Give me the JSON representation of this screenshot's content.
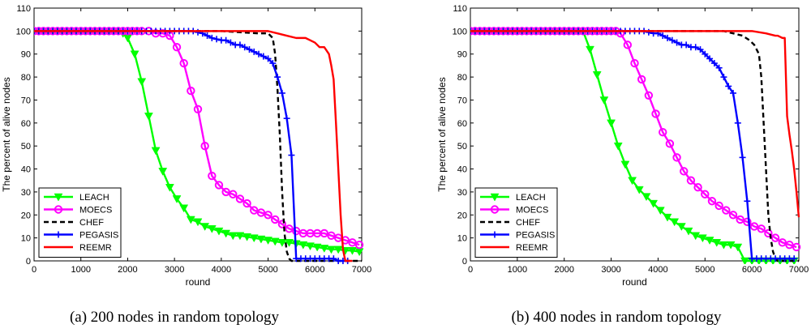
{
  "chart_data": [
    {
      "type": "line",
      "caption": "(a)  200 nodes in random topology",
      "xlabel": "round",
      "ylabel": "The percent of  alive nodes",
      "xlim": [
        0,
        7000
      ],
      "ylim": [
        0,
        110
      ],
      "xticks": [
        0,
        1000,
        2000,
        3000,
        4000,
        5000,
        6000,
        7000
      ],
      "yticks": [
        0,
        10,
        20,
        30,
        40,
        50,
        60,
        70,
        80,
        90,
        100,
        110
      ],
      "legend_position": "lower-left",
      "series": [
        {
          "name": "LEACH",
          "color": "#00ff00",
          "style": "solid",
          "marker": "triangle-down",
          "x": [
            0,
            100,
            200,
            300,
            400,
            500,
            600,
            700,
            800,
            900,
            1000,
            1100,
            1200,
            1300,
            1400,
            1500,
            1600,
            1700,
            1800,
            1900,
            2000,
            2150,
            2300,
            2450,
            2600,
            2750,
            2900,
            3050,
            3200,
            3350,
            3500,
            3650,
            3800,
            3950,
            4100,
            4250,
            4400,
            4550,
            4700,
            4850,
            5000,
            5150,
            5300,
            5450,
            5600,
            5750,
            5900,
            6050,
            6200,
            6350,
            6500,
            6650,
            6800,
            6950
          ],
          "y": [
            100,
            100,
            100,
            100,
            100,
            100,
            100,
            100,
            100,
            100,
            100,
            100,
            100,
            100,
            100,
            100,
            100,
            100,
            100,
            99,
            97,
            90,
            78,
            63,
            48,
            39,
            32,
            27,
            23,
            18,
            17,
            15,
            14,
            13,
            12,
            11,
            11,
            10.5,
            10,
            9.5,
            9,
            8.5,
            8,
            8,
            7.5,
            7,
            6.5,
            6,
            5.5,
            5,
            5,
            4.5,
            4.5,
            4
          ]
        },
        {
          "name": "MOECS",
          "color": "#ff00ff",
          "style": "solid",
          "marker": "circle",
          "x": [
            0,
            100,
            200,
            300,
            400,
            500,
            600,
            700,
            800,
            900,
            1000,
            1100,
            1200,
            1300,
            1400,
            1500,
            1600,
            1700,
            1800,
            1900,
            2000,
            2100,
            2200,
            2300,
            2450,
            2600,
            2750,
            2900,
            3050,
            3200,
            3350,
            3500,
            3650,
            3800,
            3950,
            4100,
            4250,
            4400,
            4550,
            4700,
            4850,
            5000,
            5150,
            5300,
            5450,
            5600,
            5750,
            5900,
            6050,
            6200,
            6350,
            6500,
            6650,
            6800,
            6950
          ],
          "y": [
            100,
            100,
            100,
            100,
            100,
            100,
            100,
            100,
            100,
            100,
            100,
            100,
            100,
            100,
            100,
            100,
            100,
            100,
            100,
            100,
            100,
            100,
            100,
            100,
            100,
            99,
            99,
            98,
            93,
            86,
            74,
            66,
            50,
            37,
            33,
            30,
            29,
            27,
            25,
            22,
            21,
            20,
            18,
            16,
            14,
            13,
            12,
            12,
            12,
            12,
            11,
            10,
            9,
            8,
            7
          ]
        },
        {
          "name": "CHEF",
          "color": "#000000",
          "style": "dashed",
          "marker": "none",
          "x": [
            0,
            1000,
            2000,
            3000,
            4000,
            4800,
            5000,
            5100,
            5150,
            5200,
            5250,
            5300,
            5350,
            5400,
            5450,
            5500,
            5600,
            6000,
            7000
          ],
          "y": [
            100,
            100,
            100,
            100,
            100,
            99,
            99,
            97,
            90,
            75,
            55,
            30,
            12,
            4,
            1,
            0,
            0,
            0,
            0
          ]
        },
        {
          "name": "PEGASIS",
          "color": "#0000ff",
          "style": "solid",
          "marker": "plus",
          "x": [
            0,
            100,
            200,
            300,
            400,
            500,
            600,
            700,
            800,
            900,
            1000,
            1100,
            1200,
            1300,
            1400,
            1500,
            1600,
            1700,
            1800,
            1900,
            2000,
            2100,
            2200,
            2300,
            2400,
            2500,
            2600,
            2700,
            2800,
            2900,
            3000,
            3100,
            3200,
            3300,
            3400,
            3500,
            3600,
            3700,
            3800,
            3900,
            4000,
            4100,
            4200,
            4300,
            4400,
            4500,
            4600,
            4700,
            4800,
            4900,
            5000,
            5100,
            5200,
            5300,
            5400,
            5500,
            5600,
            5700,
            5800,
            5900,
            6000,
            6100,
            6200,
            6300,
            6400,
            6500,
            6600,
            6700
          ],
          "y": [
            100,
            100,
            100,
            100,
            100,
            100,
            100,
            100,
            100,
            100,
            100,
            100,
            100,
            100,
            100,
            100,
            100,
            100,
            100,
            100,
            100,
            100,
            100,
            100,
            100,
            100,
            100,
            100,
            100,
            100,
            100,
            100,
            100,
            100,
            100,
            99.5,
            99,
            98,
            97,
            96.5,
            96,
            96,
            95,
            94,
            94,
            93,
            92,
            91,
            90,
            89,
            88,
            86,
            80,
            73,
            62,
            46,
            1,
            1,
            1,
            1,
            1,
            1,
            1,
            1,
            1,
            0,
            0,
            0
          ]
        },
        {
          "name": "REEMR",
          "color": "#ff0000",
          "style": "solid",
          "marker": "none",
          "x": [
            0,
            1000,
            2000,
            3000,
            4000,
            5000,
            5200,
            5400,
            5600,
            5800,
            5900,
            6000,
            6100,
            6200,
            6300,
            6350,
            6400,
            6450,
            6500,
            6550,
            6600,
            6650,
            6700,
            6750,
            6800
          ],
          "y": [
            100,
            100,
            100,
            100,
            100,
            100,
            99,
            98,
            97,
            97,
            96,
            95,
            93,
            93,
            90,
            85,
            79,
            60,
            40,
            20,
            5,
            0,
            0,
            0,
            0
          ]
        }
      ]
    },
    {
      "type": "line",
      "caption": "(b)  400 nodes in random topology",
      "xlabel": "round",
      "ylabel": "The percent of  alive nodes",
      "xlim": [
        0,
        7000
      ],
      "ylim": [
        0,
        110
      ],
      "xticks": [
        0,
        1000,
        2000,
        3000,
        4000,
        5000,
        6000,
        7000
      ],
      "yticks": [
        0,
        10,
        20,
        30,
        40,
        50,
        60,
        70,
        80,
        90,
        100,
        110
      ],
      "legend_position": "lower-left",
      "series": [
        {
          "name": "LEACH",
          "color": "#00ff00",
          "style": "solid",
          "marker": "triangle-down",
          "x": [
            0,
            100,
            200,
            300,
            400,
            500,
            600,
            700,
            800,
            900,
            1000,
            1100,
            1200,
            1300,
            1400,
            1500,
            1600,
            1700,
            1800,
            1900,
            2000,
            2100,
            2200,
            2300,
            2400,
            2550,
            2700,
            2850,
            3000,
            3150,
            3300,
            3450,
            3600,
            3750,
            3900,
            4050,
            4200,
            4350,
            4500,
            4650,
            4800,
            4950,
            5100,
            5250,
            5400,
            5550,
            5700,
            5850,
            6000,
            6150,
            6300,
            6450,
            6600,
            6750,
            6900
          ],
          "y": [
            100,
            100,
            100,
            100,
            100,
            100,
            100,
            100,
            100,
            100,
            100,
            100,
            100,
            100,
            100,
            100,
            100,
            100,
            100,
            100,
            100,
            100,
            100,
            100,
            100,
            92,
            81,
            70,
            60,
            50,
            42,
            35,
            31,
            28,
            25,
            22,
            19,
            17,
            15,
            13,
            11,
            10,
            9,
            8,
            7,
            7,
            6,
            0,
            0,
            0,
            0,
            0,
            0,
            0,
            0
          ]
        },
        {
          "name": "MOECS",
          "color": "#ff00ff",
          "style": "solid",
          "marker": "circle",
          "x": [
            0,
            100,
            200,
            300,
            400,
            500,
            600,
            700,
            800,
            900,
            1000,
            1100,
            1200,
            1300,
            1400,
            1500,
            1600,
            1700,
            1800,
            1900,
            2000,
            2100,
            2200,
            2300,
            2400,
            2500,
            2600,
            2700,
            2800,
            2900,
            3000,
            3100,
            3200,
            3350,
            3500,
            3650,
            3800,
            3950,
            4100,
            4250,
            4400,
            4550,
            4700,
            4850,
            5000,
            5150,
            5300,
            5450,
            5600,
            5750,
            5900,
            6050,
            6200,
            6350,
            6500,
            6650,
            6800,
            6950
          ],
          "y": [
            100,
            100,
            100,
            100,
            100,
            100,
            100,
            100,
            100,
            100,
            100,
            100,
            100,
            100,
            100,
            100,
            100,
            100,
            100,
            100,
            100,
            100,
            100,
            100,
            100,
            100,
            100,
            100,
            100,
            100,
            100,
            100,
            99,
            94,
            86,
            79,
            72,
            64,
            56,
            51,
            45,
            39,
            35,
            32,
            29,
            26,
            24,
            22,
            20,
            18,
            17,
            15,
            14,
            12,
            10,
            8,
            7,
            6
          ]
        },
        {
          "name": "CHEF",
          "color": "#000000",
          "style": "dashed",
          "marker": "none",
          "x": [
            0,
            1000,
            2000,
            3000,
            4000,
            5000,
            5400,
            5600,
            5800,
            5950,
            6050,
            6150,
            6200,
            6250,
            6300,
            6350,
            6400,
            6450,
            6500,
            6550,
            6600,
            7000
          ],
          "y": [
            100,
            100,
            100,
            100,
            100,
            100,
            100,
            99,
            98,
            96,
            94,
            90,
            80,
            60,
            40,
            20,
            10,
            4,
            1,
            0,
            0,
            0
          ]
        },
        {
          "name": "PEGASIS",
          "color": "#0000ff",
          "style": "solid",
          "marker": "plus",
          "x": [
            0,
            100,
            200,
            300,
            400,
            500,
            600,
            700,
            800,
            900,
            1000,
            1100,
            1200,
            1300,
            1400,
            1500,
            1600,
            1700,
            1800,
            1900,
            2000,
            2100,
            2200,
            2300,
            2400,
            2500,
            2600,
            2700,
            2800,
            2900,
            3000,
            3100,
            3200,
            3300,
            3400,
            3500,
            3600,
            3700,
            3800,
            3900,
            4000,
            4100,
            4200,
            4300,
            4400,
            4500,
            4600,
            4700,
            4800,
            4900,
            5000,
            5100,
            5200,
            5300,
            5400,
            5500,
            5600,
            5700,
            5800,
            5900,
            6000,
            6100,
            6200,
            6300,
            6400,
            6500,
            6600,
            6700,
            6800,
            6900
          ],
          "y": [
            100,
            100,
            100,
            100,
            100,
            100,
            100,
            100,
            100,
            100,
            100,
            100,
            100,
            100,
            100,
            100,
            100,
            100,
            100,
            100,
            100,
            100,
            100,
            100,
            100,
            100,
            100,
            100,
            100,
            100,
            100,
            100,
            100,
            100,
            100,
            100,
            100,
            100,
            99.5,
            99,
            99,
            98,
            97,
            96,
            95,
            94,
            94,
            93,
            93,
            92,
            90,
            88,
            86,
            84,
            80,
            76,
            73,
            60,
            45,
            26,
            1,
            1,
            1,
            1,
            1,
            1,
            1,
            1,
            1,
            1
          ]
        },
        {
          "name": "REEMR",
          "color": "#ff0000",
          "style": "solid",
          "marker": "none",
          "x": [
            0,
            1000,
            2000,
            3000,
            4000,
            5000,
            5500,
            6000,
            6300,
            6500,
            6550,
            6600,
            6650,
            6700,
            6750,
            6800,
            6850,
            6900,
            6950,
            7000
          ],
          "y": [
            100,
            100,
            100,
            100,
            100,
            100,
            100,
            100,
            99,
            98,
            98,
            97.5,
            97,
            97,
            63,
            55,
            48,
            40,
            30,
            19
          ]
        }
      ]
    }
  ]
}
